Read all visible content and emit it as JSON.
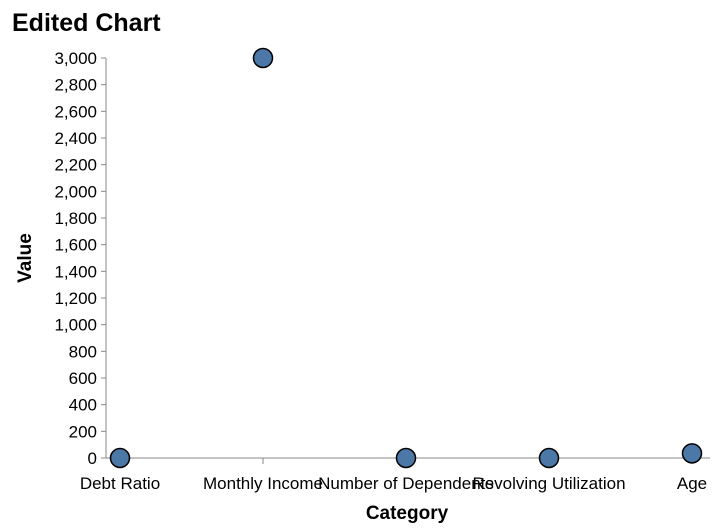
{
  "chart_data": {
    "type": "scatter",
    "title": "Edited Chart",
    "xlabel": "Category",
    "ylabel": "Value",
    "categories": [
      "Debt Ratio",
      "Monthly Income",
      "Number of Dependents",
      "Revolving Utilization",
      "Age"
    ],
    "values": [
      0,
      3000,
      0,
      0,
      35
    ],
    "ylim": [
      0,
      3000
    ],
    "yticks": [
      0,
      200,
      400,
      600,
      800,
      1000,
      1200,
      1400,
      1600,
      1800,
      2000,
      2200,
      2400,
      2600,
      2800,
      3000
    ],
    "grid": false,
    "legend": "none",
    "colors": {
      "point_fill": "#4c78a8",
      "point_stroke": "#000000",
      "axis": "#888888"
    }
  }
}
